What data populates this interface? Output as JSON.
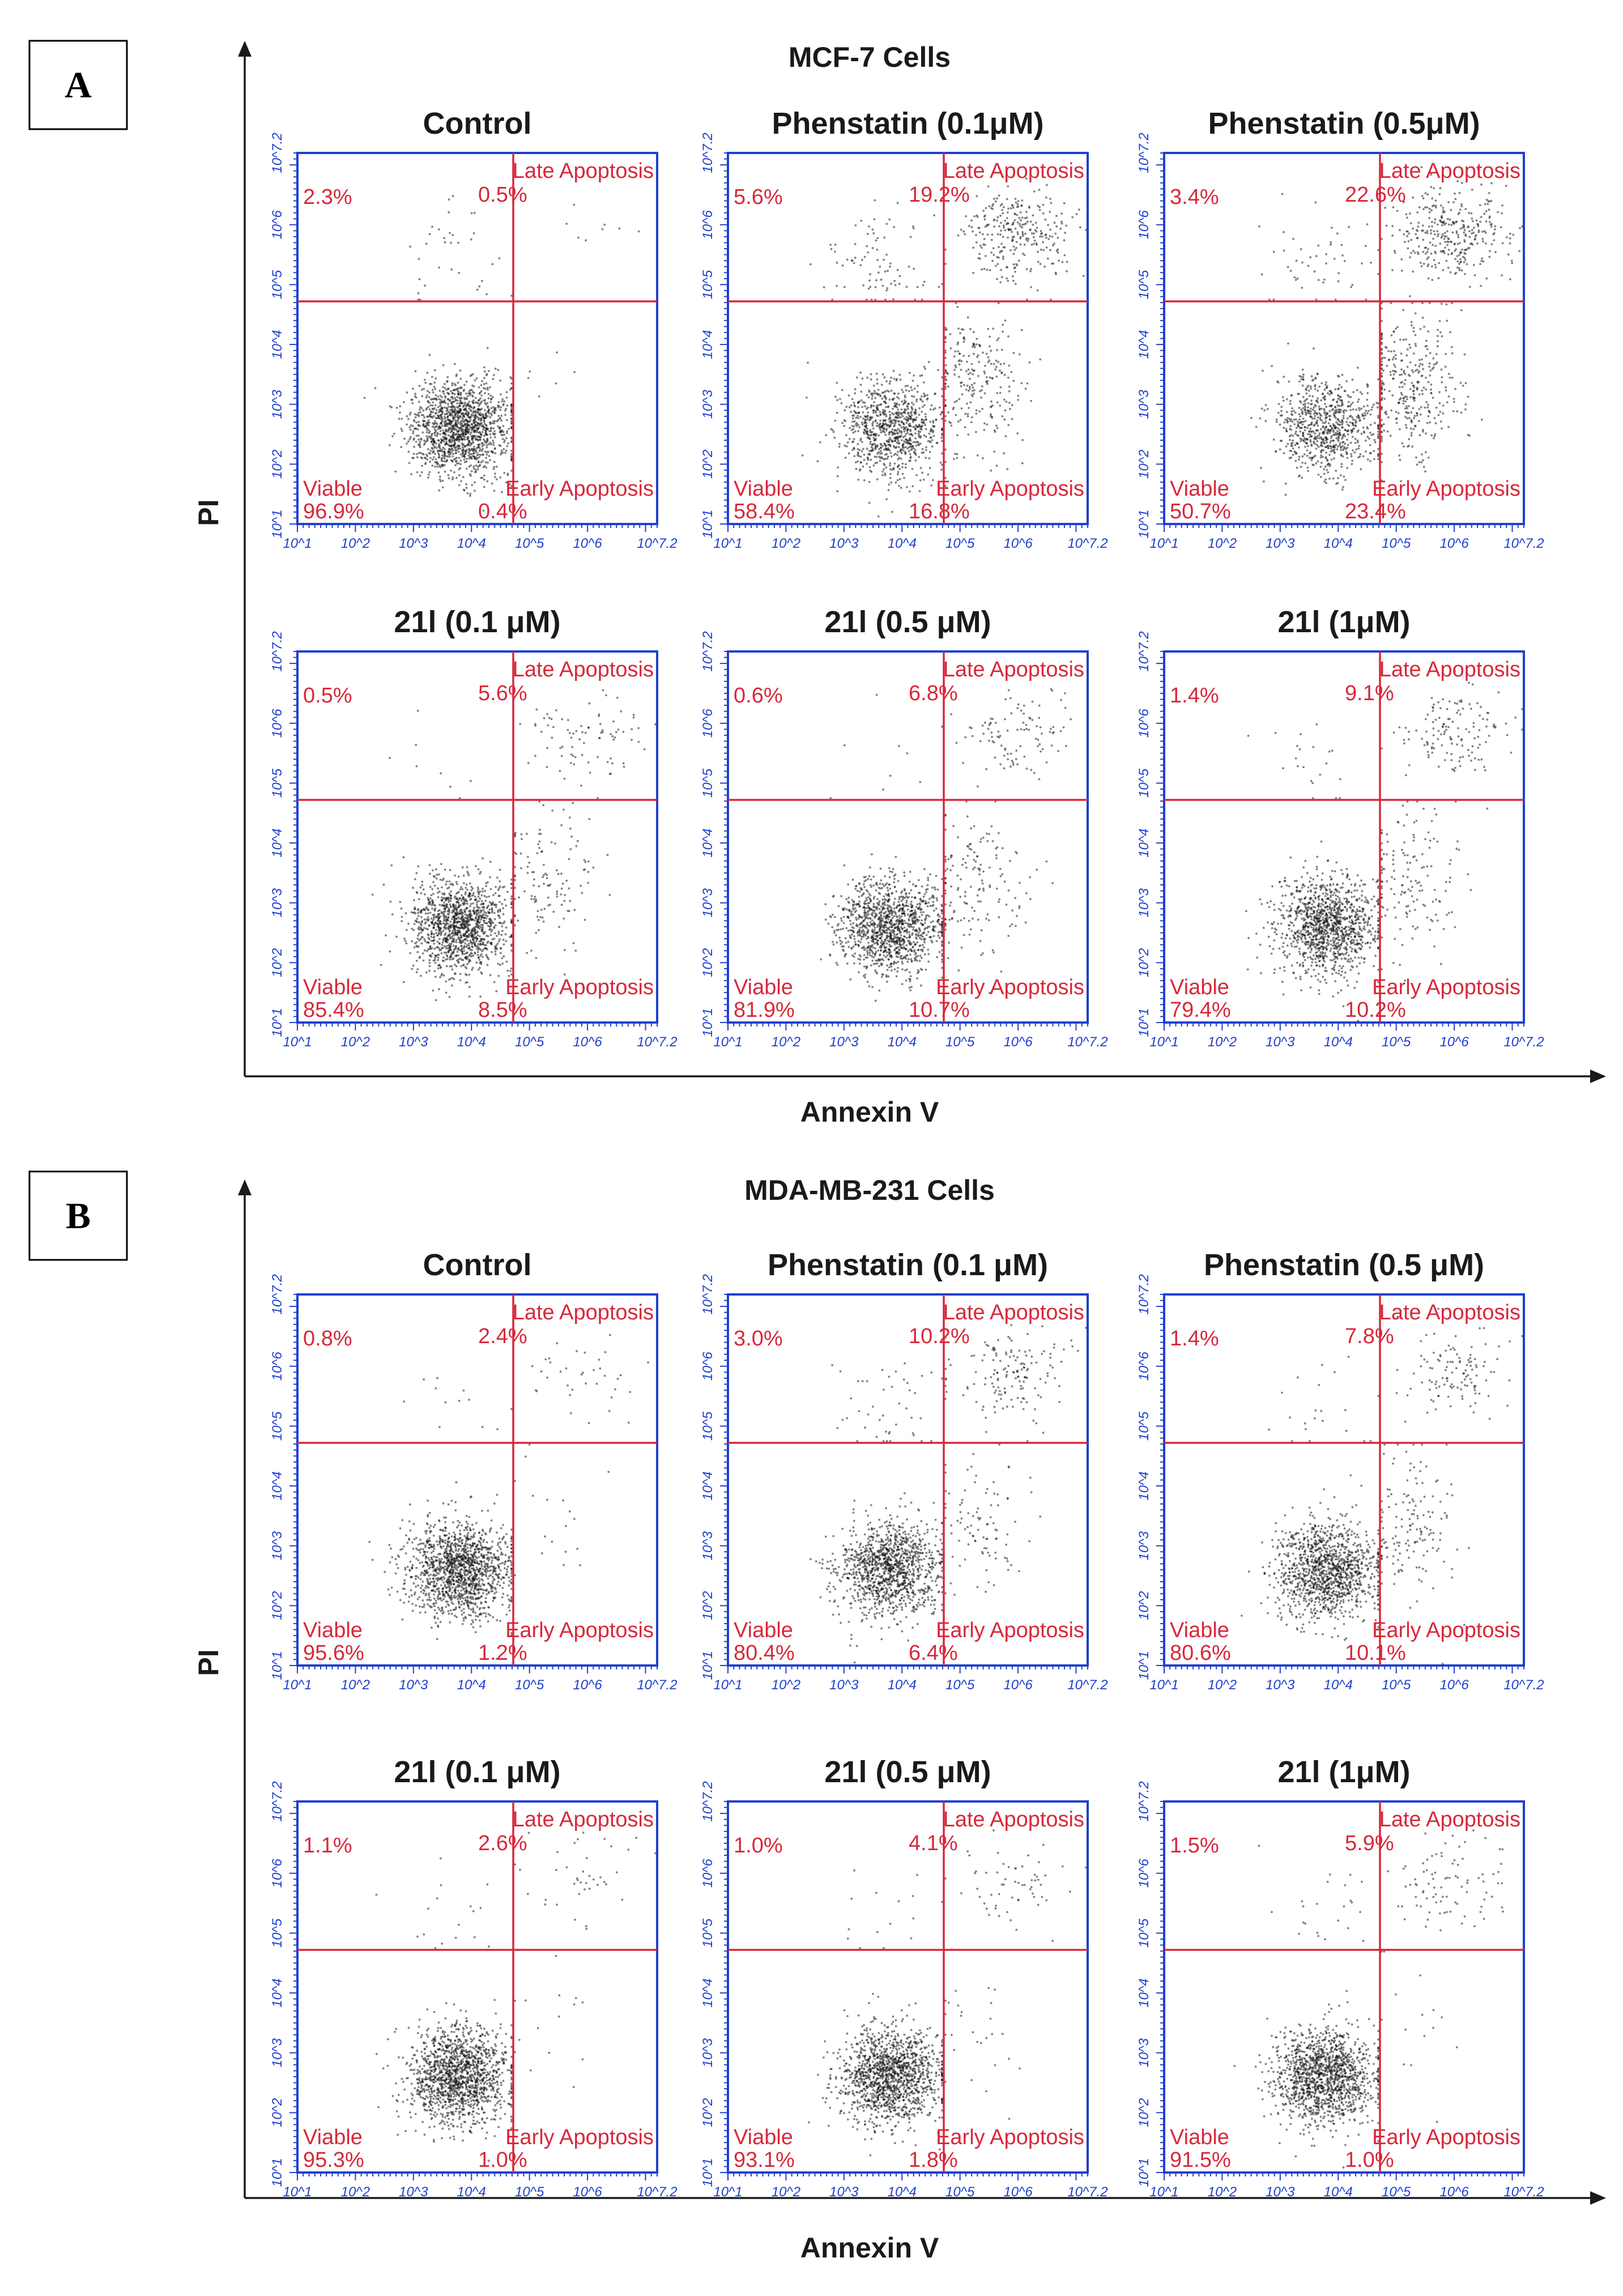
{
  "sections": [
    {
      "panel_label": "A",
      "title": "MCF-7 Cells",
      "xlabel": "Annexin V",
      "ylabel": "PI"
    },
    {
      "panel_label": "B",
      "title": "MDA-MB-231 Cells",
      "xlabel": "Annexin V",
      "ylabel": "PI"
    }
  ],
  "quadrant_names": {
    "upper_right": "Late Apoptosis",
    "lower_left": "Viable",
    "lower_right": "Early Apoptosis"
  },
  "axis_ticks": [
    "10^1",
    "10^2",
    "10^3",
    "10^4",
    "10^5",
    "10^6",
    "10^7.2"
  ],
  "chart_data": [
    {
      "type": "scatter",
      "section": "MCF-7 Cells",
      "title": "Control",
      "xlabel": "Annexin V",
      "ylabel": "PI",
      "xscale": "log",
      "yscale": "log",
      "xlim": [
        1,
        7.2
      ],
      "ylim": [
        1,
        7.2
      ],
      "quadrants": {
        "upper_left": "2.3%",
        "upper_right": "0.5%",
        "lower_left": "96.9%",
        "lower_right": "0.4%"
      }
    },
    {
      "type": "scatter",
      "section": "MCF-7 Cells",
      "title": "Phenstatin (0.1μM)",
      "xlabel": "Annexin V",
      "ylabel": "PI",
      "xscale": "log",
      "yscale": "log",
      "xlim": [
        1,
        7.2
      ],
      "ylim": [
        1,
        7.2
      ],
      "quadrants": {
        "upper_left": "5.6%",
        "upper_right": "19.2%",
        "lower_left": "58.4%",
        "lower_right": "16.8%"
      }
    },
    {
      "type": "scatter",
      "section": "MCF-7 Cells",
      "title": "Phenstatin (0.5μM)",
      "xlabel": "Annexin V",
      "ylabel": "PI",
      "xscale": "log",
      "yscale": "log",
      "xlim": [
        1,
        7.2
      ],
      "ylim": [
        1,
        7.2
      ],
      "quadrants": {
        "upper_left": "3.4%",
        "upper_right": "22.6%",
        "lower_left": "50.7%",
        "lower_right": "23.4%"
      }
    },
    {
      "type": "scatter",
      "section": "MCF-7 Cells",
      "title": "21l (0.1 μM)",
      "xlabel": "Annexin V",
      "ylabel": "PI",
      "xscale": "log",
      "yscale": "log",
      "xlim": [
        1,
        7.2
      ],
      "ylim": [
        1,
        7.2
      ],
      "quadrants": {
        "upper_left": "0.5%",
        "upper_right": "5.6%",
        "lower_left": "85.4%",
        "lower_right": "8.5%"
      }
    },
    {
      "type": "scatter",
      "section": "MCF-7 Cells",
      "title": "21l (0.5 μM)",
      "xlabel": "Annexin V",
      "ylabel": "PI",
      "xscale": "log",
      "yscale": "log",
      "xlim": [
        1,
        7.2
      ],
      "ylim": [
        1,
        7.2
      ],
      "quadrants": {
        "upper_left": "0.6%",
        "upper_right": "6.8%",
        "lower_left": "81.9%",
        "lower_right": "10.7%"
      }
    },
    {
      "type": "scatter",
      "section": "MCF-7 Cells",
      "title": "21l (1μM)",
      "xlabel": "Annexin V",
      "ylabel": "PI",
      "xscale": "log",
      "yscale": "log",
      "xlim": [
        1,
        7.2
      ],
      "ylim": [
        1,
        7.2
      ],
      "quadrants": {
        "upper_left": "1.4%",
        "upper_right": "9.1%",
        "lower_left": "79.4%",
        "lower_right": "10.2%"
      }
    },
    {
      "type": "scatter",
      "section": "MDA-MB-231 Cells",
      "title": "Control",
      "xlabel": "Annexin V",
      "ylabel": "PI",
      "xscale": "log",
      "yscale": "log",
      "xlim": [
        1,
        7.2
      ],
      "ylim": [
        1,
        7.2
      ],
      "quadrants": {
        "upper_left": "0.8%",
        "upper_right": "2.4%",
        "lower_left": "95.6%",
        "lower_right": "1.2%"
      }
    },
    {
      "type": "scatter",
      "section": "MDA-MB-231 Cells",
      "title": "Phenstatin (0.1 μM)",
      "xlabel": "Annexin V",
      "ylabel": "PI",
      "xscale": "log",
      "yscale": "log",
      "xlim": [
        1,
        7.2
      ],
      "ylim": [
        1,
        7.2
      ],
      "quadrants": {
        "upper_left": "3.0%",
        "upper_right": "10.2%",
        "lower_left": "80.4%",
        "lower_right": "6.4%"
      }
    },
    {
      "type": "scatter",
      "section": "MDA-MB-231 Cells",
      "title": "Phenstatin (0.5 μM)",
      "xlabel": "Annexin V",
      "ylabel": "PI",
      "xscale": "log",
      "yscale": "log",
      "xlim": [
        1,
        7.2
      ],
      "ylim": [
        1,
        7.2
      ],
      "quadrants": {
        "upper_left": "1.4%",
        "upper_right": "7.8%",
        "lower_left": "80.6%",
        "lower_right": "10.1%"
      }
    },
    {
      "type": "scatter",
      "section": "MDA-MB-231 Cells",
      "title": "21l (0.1 μM)",
      "xlabel": "Annexin V",
      "ylabel": "PI",
      "xscale": "log",
      "yscale": "log",
      "xlim": [
        1,
        7.2
      ],
      "ylim": [
        1,
        7.2
      ],
      "quadrants": {
        "upper_left": "1.1%",
        "upper_right": "2.6%",
        "lower_left": "95.3%",
        "lower_right": "1.0%"
      }
    },
    {
      "type": "scatter",
      "section": "MDA-MB-231 Cells",
      "title": "21l (0.5 μM)",
      "xlabel": "Annexin V",
      "ylabel": "PI",
      "xscale": "log",
      "yscale": "log",
      "xlim": [
        1,
        7.2
      ],
      "ylim": [
        1,
        7.2
      ],
      "quadrants": {
        "upper_left": "1.0%",
        "upper_right": "4.1%",
        "lower_left": "93.1%",
        "lower_right": "1.8%"
      }
    },
    {
      "type": "scatter",
      "section": "MDA-MB-231 Cells",
      "title": "21l (1μM)",
      "xlabel": "Annexin V",
      "ylabel": "PI",
      "xscale": "log",
      "yscale": "log",
      "xlim": [
        1,
        7.2
      ],
      "ylim": [
        1,
        7.2
      ],
      "quadrants": {
        "upper_left": "1.5%",
        "upper_right": "5.9%",
        "lower_left": "91.5%",
        "lower_right": "1.0%"
      }
    }
  ]
}
